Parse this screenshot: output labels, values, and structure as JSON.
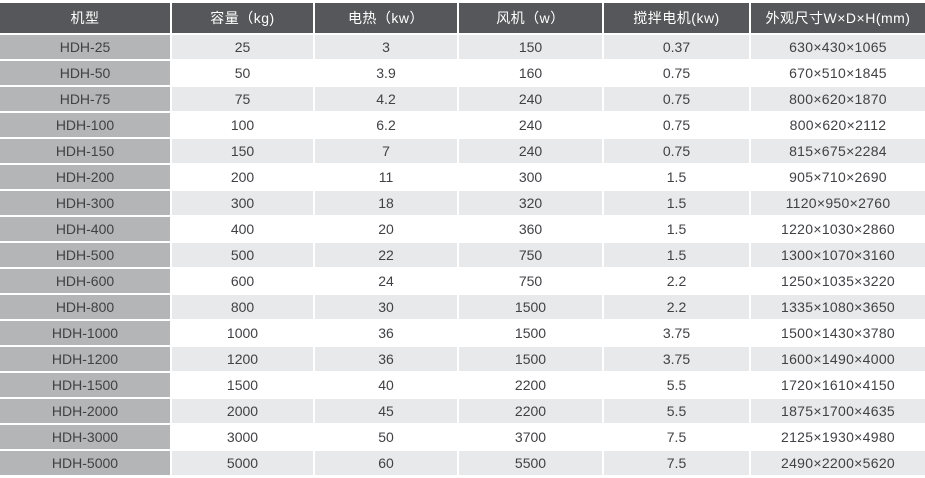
{
  "table": {
    "columns": [
      {
        "label": "机型"
      },
      {
        "label": "容量（kg)"
      },
      {
        "label": "电热（kw）"
      },
      {
        "label": "风机（w）"
      },
      {
        "label": "搅拌电机(kw)"
      },
      {
        "label": "外观尺寸W×D×H(mm)"
      }
    ],
    "rows": [
      {
        "model": "HDH-25",
        "capacity_kg": "25",
        "heat_kw": "3",
        "fan_w": "150",
        "motor_kw": "0.37",
        "dims_mm": "630×430×1065"
      },
      {
        "model": "HDH-50",
        "capacity_kg": "50",
        "heat_kw": "3.9",
        "fan_w": "160",
        "motor_kw": "0.75",
        "dims_mm": "670×510×1845"
      },
      {
        "model": "HDH-75",
        "capacity_kg": "75",
        "heat_kw": "4.2",
        "fan_w": "240",
        "motor_kw": "0.75",
        "dims_mm": "800×620×1870"
      },
      {
        "model": "HDH-100",
        "capacity_kg": "100",
        "heat_kw": "6.2",
        "fan_w": "240",
        "motor_kw": "0.75",
        "dims_mm": "800×620×2112"
      },
      {
        "model": "HDH-150",
        "capacity_kg": "150",
        "heat_kw": "7",
        "fan_w": "240",
        "motor_kw": "0.75",
        "dims_mm": "815×675×2284"
      },
      {
        "model": "HDH-200",
        "capacity_kg": "200",
        "heat_kw": "11",
        "fan_w": "300",
        "motor_kw": "1.5",
        "dims_mm": "905×710×2690"
      },
      {
        "model": "HDH-300",
        "capacity_kg": "300",
        "heat_kw": "18",
        "fan_w": "320",
        "motor_kw": "1.5",
        "dims_mm": "1120×950×2760"
      },
      {
        "model": "HDH-400",
        "capacity_kg": "400",
        "heat_kw": "20",
        "fan_w": "360",
        "motor_kw": "1.5",
        "dims_mm": "1220×1030×2860"
      },
      {
        "model": "HDH-500",
        "capacity_kg": "500",
        "heat_kw": "22",
        "fan_w": "750",
        "motor_kw": "1.5",
        "dims_mm": "1300×1070×3160"
      },
      {
        "model": "HDH-600",
        "capacity_kg": "600",
        "heat_kw": "24",
        "fan_w": "750",
        "motor_kw": "2.2",
        "dims_mm": "1250×1035×3220"
      },
      {
        "model": "HDH-800",
        "capacity_kg": "800",
        "heat_kw": "30",
        "fan_w": "1500",
        "motor_kw": "2.2",
        "dims_mm": "1335×1080×3650"
      },
      {
        "model": "HDH-1000",
        "capacity_kg": "1000",
        "heat_kw": "36",
        "fan_w": "1500",
        "motor_kw": "3.75",
        "dims_mm": "1500×1430×3780"
      },
      {
        "model": "HDH-1200",
        "capacity_kg": "1200",
        "heat_kw": "36",
        "fan_w": "1500",
        "motor_kw": "3.75",
        "dims_mm": "1600×1490×4000"
      },
      {
        "model": "HDH-1500",
        "capacity_kg": "1500",
        "heat_kw": "40",
        "fan_w": "2200",
        "motor_kw": "5.5",
        "dims_mm": "1720×1610×4150"
      },
      {
        "model": "HDH-2000",
        "capacity_kg": "2000",
        "heat_kw": "45",
        "fan_w": "2200",
        "motor_kw": "5.5",
        "dims_mm": "1875×1700×4635"
      },
      {
        "model": "HDH-3000",
        "capacity_kg": "3000",
        "heat_kw": "50",
        "fan_w": "3700",
        "motor_kw": "7.5",
        "dims_mm": "2125×1930×4980"
      },
      {
        "model": "HDH-5000",
        "capacity_kg": "5000",
        "heat_kw": "60",
        "fan_w": "5500",
        "motor_kw": "7.5",
        "dims_mm": "2490×2200×5620"
      }
    ]
  },
  "colors": {
    "header_bg": "#56575a",
    "header_text": "#ffffff",
    "model_column_bg": "#b3b5b7",
    "row_alt_bg": "#e8e9ea",
    "row_bg": "#ffffff",
    "body_text": "#404145"
  }
}
